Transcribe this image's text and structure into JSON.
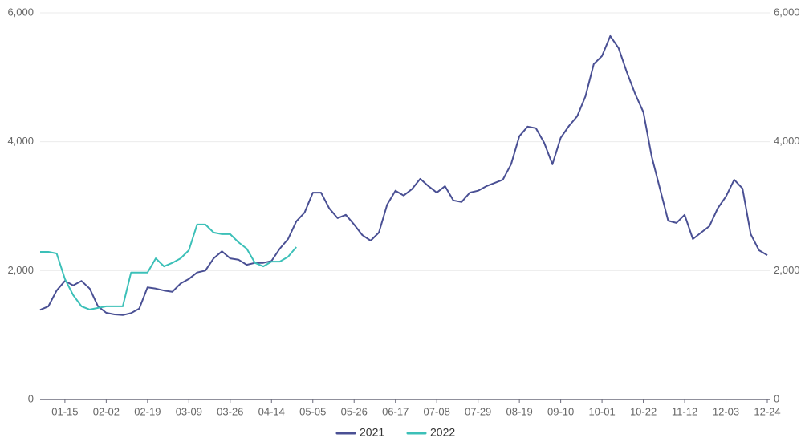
{
  "chart_data": {
    "type": "line",
    "categories": [
      null,
      null,
      null,
      "01-15",
      null,
      null,
      null,
      null,
      "02-02",
      null,
      null,
      null,
      null,
      "02-19",
      null,
      null,
      null,
      null,
      "03-09",
      null,
      null,
      null,
      null,
      "03-26",
      null,
      null,
      null,
      null,
      "04-14",
      null,
      null,
      null,
      null,
      "05-05",
      null,
      null,
      null,
      null,
      "05-26",
      null,
      null,
      null,
      null,
      "06-17",
      null,
      null,
      null,
      null,
      "07-08",
      null,
      null,
      null,
      null,
      "07-29",
      null,
      null,
      null,
      null,
      "08-19",
      null,
      null,
      null,
      null,
      "09-10",
      null,
      null,
      null,
      null,
      "10-01",
      null,
      null,
      null,
      null,
      "10-22",
      null,
      null,
      null,
      null,
      "11-12",
      null,
      null,
      null,
      null,
      "12-03",
      null,
      null,
      null,
      null,
      "12-24"
    ],
    "series": [
      {
        "name": "2021",
        "color": "#4a5094",
        "values": [
          1390,
          1445,
          1690,
          1840,
          1770,
          1840,
          1720,
          1445,
          1345,
          1320,
          1310,
          1340,
          1410,
          1740,
          1720,
          1690,
          1670,
          1800,
          1870,
          1970,
          2000,
          2190,
          2300,
          2190,
          2170,
          2090,
          2120,
          2120,
          2150,
          2340,
          2490,
          2765,
          2900,
          3210,
          3210,
          2965,
          2815,
          2865,
          2715,
          2550,
          2465,
          2590,
          3025,
          3240,
          3165,
          3265,
          3425,
          3310,
          3210,
          3310,
          3090,
          3065,
          3210,
          3240,
          3310,
          3360,
          3410,
          3650,
          4085,
          4235,
          4210,
          3985,
          3650,
          4060,
          4245,
          4395,
          4705,
          5205,
          5330,
          5640,
          5455,
          5080,
          4745,
          4460,
          3775,
          3275,
          2775,
          2740,
          2865,
          2490,
          2590,
          2690,
          2965,
          3150,
          3410,
          3275,
          2565,
          2315,
          2240
        ]
      },
      {
        "name": "2022",
        "color": "#3cc0b8",
        "values": [
          2290,
          2290,
          2265,
          1870,
          1620,
          1445,
          1395,
          1420,
          1445,
          1445,
          1445,
          1970,
          1970,
          1970,
          2190,
          2065,
          2120,
          2190,
          2315,
          2715,
          2715,
          2590,
          2565,
          2565,
          2440,
          2340,
          2120,
          2065,
          2140,
          2140,
          2215,
          2365,
          null,
          null,
          null,
          null,
          null,
          null,
          null,
          null,
          null,
          null,
          null,
          null,
          null,
          null,
          null,
          null,
          null,
          null,
          null,
          null,
          null,
          null,
          null,
          null,
          null,
          null,
          null,
          null,
          null,
          null,
          null,
          null,
          null,
          null,
          null,
          null,
          null,
          null,
          null,
          null,
          null,
          null,
          null,
          null,
          null,
          null,
          null,
          null,
          null,
          null,
          null,
          null,
          null,
          null,
          null,
          null,
          null
        ]
      }
    ],
    "ylim": [
      0,
      6000
    ],
    "yticks": [
      0,
      {
        "value": 2000,
        "label": "2,000"
      },
      {
        "value": 4000,
        "label": "4,000"
      },
      {
        "value": 6000,
        "label": "6,000"
      }
    ],
    "y2lim": [
      0,
      6000
    ],
    "y2ticks": [
      0,
      {
        "value": 2000,
        "label": "2,000"
      },
      {
        "value": 4000,
        "label": "4,000"
      },
      {
        "value": 6000,
        "label": "6,000"
      }
    ],
    "grid": true
  }
}
